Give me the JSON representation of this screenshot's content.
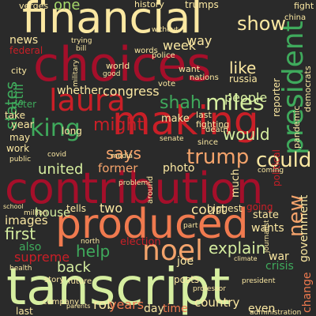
{
  "palette": {
    "background": "#2a2a2a",
    "crimson": "#a50f2a",
    "red": "#c91f27",
    "orange": "#f07a4f",
    "peach": "#f4a36b",
    "cream": "#fbe8a2",
    "pale_green": "#d6eea0",
    "light_green": "#a6d96a",
    "green": "#3faa5c",
    "dark_green": "#1a8a4a",
    "yellow": "#fcd987"
  },
  "words": [
    {
      "text": "financial",
      "color": "#fbe8a2"
    },
    {
      "text": "choices",
      "color": "#a50f2a"
    },
    {
      "text": "laura",
      "color": "#c91f27"
    },
    {
      "text": "making",
      "color": "#c91f27"
    },
    {
      "text": "contribution",
      "color": "#a50f2a"
    },
    {
      "text": "produced",
      "color": "#f07a4f"
    },
    {
      "text": "tanscript",
      "color": "#d6eea0"
    },
    {
      "text": "noel",
      "color": "#f4a36b"
    },
    {
      "text": "president",
      "color": "#3faa5c"
    },
    {
      "text": "king",
      "color": "#3faa5c"
    },
    {
      "text": "might",
      "color": "#c91f27"
    },
    {
      "text": "miles",
      "color": "#d6eea0"
    },
    {
      "text": "shah",
      "color": "#3faa5c"
    },
    {
      "text": "trump",
      "color": "#f4a36b"
    },
    {
      "text": "says",
      "color": "#f4a36b"
    },
    {
      "text": "could",
      "color": "#fbe8a2"
    },
    {
      "text": "united",
      "color": "#d6eea0"
    },
    {
      "text": "help",
      "color": "#3faa5c"
    },
    {
      "text": "explain",
      "color": "#d6eea0"
    },
    {
      "text": "new",
      "color": "#f4a36b"
    },
    {
      "text": "house",
      "color": "#d6eea0"
    },
    {
      "text": "court",
      "color": "#fbe8a2"
    },
    {
      "text": "show",
      "color": "#fbe8a2"
    },
    {
      "text": "one",
      "color": "#a6d96a"
    },
    {
      "text": "states",
      "color": "#3faa5c"
    },
    {
      "text": "people",
      "color": "#d6eea0"
    },
    {
      "text": "like",
      "color": "#fbe8a2"
    },
    {
      "text": "would",
      "color": "#d6eea0"
    },
    {
      "text": "two",
      "color": "#fbe8a2"
    },
    {
      "text": "first",
      "color": "#d6eea0"
    },
    {
      "text": "back",
      "color": "#d6eea0"
    },
    {
      "text": "rob",
      "color": "#fbe8a2"
    },
    {
      "text": "years",
      "color": "#f07a4f"
    },
    {
      "text": "day",
      "color": "#fbe8a2"
    },
    {
      "text": "time",
      "color": "#f07a4f"
    },
    {
      "text": "country",
      "color": "#fbe8a2"
    },
    {
      "text": "change",
      "color": "#f07a4f"
    },
    {
      "text": "government",
      "color": "#fbe8a2"
    },
    {
      "text": "war",
      "color": "#fbe8a2"
    },
    {
      "text": "crisis",
      "color": "#3faa5c"
    },
    {
      "text": "wants",
      "color": "#fbe8a2"
    },
    {
      "text": "state",
      "color": "#fbe8a2"
    },
    {
      "text": "supreme",
      "color": "#c91f27"
    },
    {
      "text": "images",
      "color": "#fbe8a2"
    },
    {
      "text": "also",
      "color": "#3faa5c"
    },
    {
      "text": "joe",
      "color": "#fbe8a2"
    },
    {
      "text": "election",
      "color": "#c91f27"
    },
    {
      "text": "former",
      "color": "#f4a36b"
    },
    {
      "text": "photo",
      "color": "#fbe8a2"
    },
    {
      "text": "congress",
      "color": "#fbe8a2"
    },
    {
      "text": "whether",
      "color": "#fbe8a2"
    },
    {
      "text": "week",
      "color": "#fbe8a2"
    },
    {
      "text": "way",
      "color": "#fbe8a2"
    },
    {
      "text": "news",
      "color": "#fbe8a2"
    },
    {
      "text": "federal",
      "color": "#c91f27"
    },
    {
      "text": "year",
      "color": "#fbe8a2"
    },
    {
      "text": "take",
      "color": "#fbe8a2"
    },
    {
      "text": "may",
      "color": "#fbe8a2"
    },
    {
      "text": "work",
      "color": "#fbe8a2"
    },
    {
      "text": "last",
      "color": "#fbe8a2"
    },
    {
      "text": "even",
      "color": "#fbe8a2"
    },
    {
      "text": "tells",
      "color": "#fbe8a2"
    },
    {
      "text": "biggest",
      "color": "#fbe8a2"
    },
    {
      "text": "going",
      "color": "#c91f27"
    },
    {
      "text": "still",
      "color": "#3faa5c"
    },
    {
      "text": "peter",
      "color": "#3faa5c"
    },
    {
      "text": "city",
      "color": "#fbe8a2"
    },
    {
      "text": "russia",
      "color": "#fbe8a2"
    },
    {
      "text": "reporter",
      "color": "#fbe8a2"
    },
    {
      "text": "political",
      "color": "#c91f27"
    },
    {
      "text": "pandemic",
      "color": "#fbe8a2"
    },
    {
      "text": "democrats",
      "color": "#fbe8a2"
    },
    {
      "text": "much",
      "color": "#fbe8a2"
    },
    {
      "text": "joe",
      "color": "#fbe8a2"
    },
    {
      "text": "long",
      "color": "#fbe8a2"
    },
    {
      "text": "make",
      "color": "#fbe8a2"
    },
    {
      "text": "fighting",
      "color": "#fbe8a2"
    },
    {
      "text": "verges",
      "color": "#fbe8a2"
    },
    {
      "text": "history",
      "color": "#fbe8a2"
    },
    {
      "text": "trumps",
      "color": "#fbe8a2"
    },
    {
      "text": "fight",
      "color": "#fbe8a2"
    },
    {
      "text": "china",
      "color": "#fbe8a2"
    },
    {
      "text": "world",
      "color": "#fbe8a2"
    },
    {
      "text": "words",
      "color": "#fbe8a2"
    },
    {
      "text": "police",
      "color": "#fbe8a2"
    },
    {
      "text": "want",
      "color": "#fbe8a2"
    },
    {
      "text": "nations",
      "color": "#fbe8a2"
    },
    {
      "text": "death",
      "color": "#fbe8a2"
    },
    {
      "text": "last",
      "color": "#fbe8a2"
    },
    {
      "text": "since",
      "color": "#fbe8a2"
    },
    {
      "text": "around",
      "color": "#fbe8a2"
    },
    {
      "text": "school",
      "color": "#fbe8a2"
    },
    {
      "text": "million",
      "color": "#fbe8a2"
    },
    {
      "text": "public",
      "color": "#fbe8a2"
    },
    {
      "text": "north",
      "color": "#fbe8a2"
    },
    {
      "text": "future",
      "color": "#fbe8a2"
    },
    {
      "text": "story",
      "color": "#fbe8a2"
    },
    {
      "text": "posts",
      "color": "#fbe8a2"
    },
    {
      "text": "company",
      "color": "#fbe8a2"
    },
    {
      "text": "parents",
      "color": "#fbe8a2"
    },
    {
      "text": "president",
      "color": "#fbe8a2"
    },
    {
      "text": "administration",
      "color": "#fbe8a2"
    },
    {
      "text": "vote",
      "color": "#fbe8a2"
    },
    {
      "text": "senate",
      "color": "#fbe8a2"
    },
    {
      "text": "problem",
      "color": "#fbe8a2"
    },
    {
      "text": "covid",
      "color": "#fbe8a2"
    },
    {
      "text": "climate",
      "color": "#fbe8a2"
    },
    {
      "text": "trying",
      "color": "#fbe8a2"
    },
    {
      "text": "bill",
      "color": "#fbe8a2"
    },
    {
      "text": "without",
      "color": "#fbe8a2"
    },
    {
      "text": "military",
      "color": "#fbe8a2"
    },
    {
      "text": "good",
      "color": "#fbe8a2"
    },
    {
      "text": "health",
      "color": "#fbe8a2"
    },
    {
      "text": "media",
      "color": "#fbe8a2"
    },
    {
      "text": "part",
      "color": "#fbe8a2"
    },
    {
      "text": "coming",
      "color": "#fbe8a2"
    },
    {
      "text": "journalist",
      "color": "#fbe8a2"
    },
    {
      "text": "professor",
      "color": "#fbe8a2"
    }
  ]
}
